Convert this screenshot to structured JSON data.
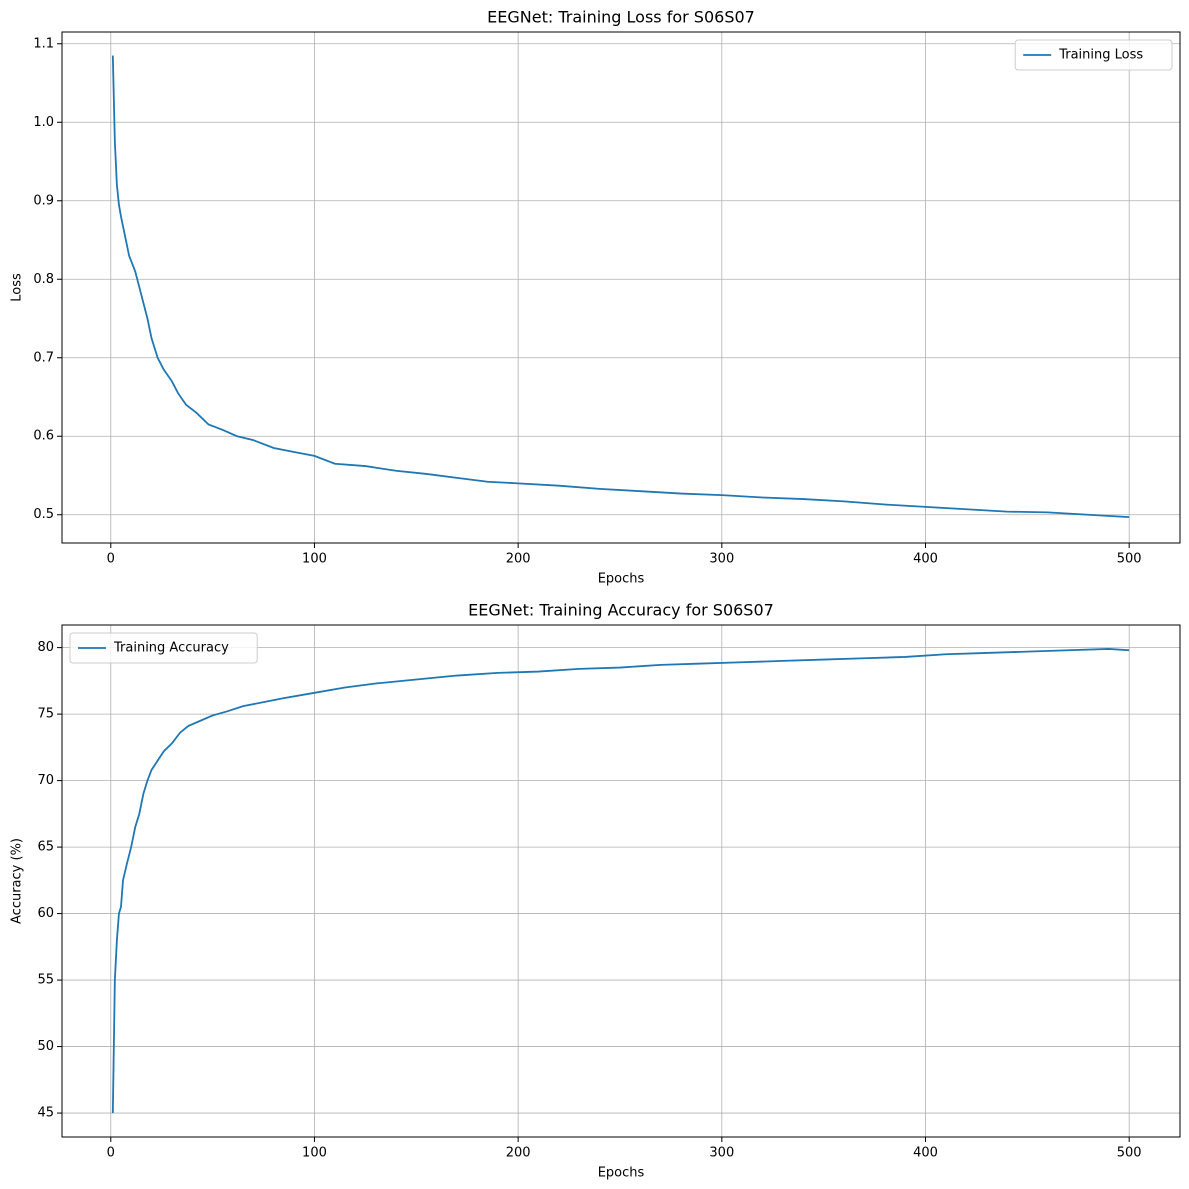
{
  "chart_data": [
    {
      "type": "line",
      "title": "EEGNet: Training Loss for S06S07",
      "xlabel": "Epochs",
      "ylabel": "Loss",
      "x": [
        1,
        2,
        3,
        4,
        5,
        7,
        9,
        12,
        15,
        18,
        20,
        23,
        26,
        30,
        33,
        37,
        42,
        48,
        55,
        62,
        70,
        80,
        90,
        100,
        110,
        125,
        140,
        155,
        170,
        185,
        200,
        220,
        240,
        260,
        280,
        300,
        320,
        340,
        360,
        380,
        400,
        420,
        440,
        460,
        480,
        500
      ],
      "series": [
        {
          "name": "Training Loss",
          "color": "#1f77b4",
          "values": [
            1.085,
            0.975,
            0.92,
            0.895,
            0.88,
            0.855,
            0.83,
            0.81,
            0.78,
            0.75,
            0.725,
            0.7,
            0.685,
            0.67,
            0.655,
            0.64,
            0.63,
            0.615,
            0.608,
            0.6,
            0.595,
            0.585,
            0.58,
            0.575,
            0.565,
            0.562,
            0.556,
            0.552,
            0.547,
            0.542,
            0.54,
            0.537,
            0.533,
            0.53,
            0.527,
            0.525,
            0.522,
            0.52,
            0.517,
            0.513,
            0.51,
            0.507,
            0.504,
            0.503,
            0.5,
            0.497
          ]
        }
      ],
      "xlim": [
        -23.95,
        524.95
      ],
      "xticks": [
        0,
        100,
        200,
        300,
        400,
        500
      ],
      "ylim": [
        0.464,
        1.115
      ],
      "yticks": [
        0.5,
        0.6,
        0.7,
        0.8,
        0.9,
        {
          "value": 1,
          "label": "1.0"
        },
        1.1
      ],
      "grid": true,
      "legend": "upper right"
    },
    {
      "type": "line",
      "title": "EEGNet: Training Accuracy for S06S07",
      "xlabel": "Epochs",
      "ylabel": "Accuracy (%)",
      "x": [
        1,
        2,
        3,
        4,
        5,
        6,
        8,
        10,
        12,
        14,
        16,
        18,
        20,
        23,
        26,
        30,
        34,
        38,
        44,
        50,
        57,
        65,
        75,
        85,
        100,
        115,
        130,
        150,
        170,
        190,
        210,
        230,
        250,
        270,
        290,
        310,
        330,
        350,
        370,
        390,
        410,
        430,
        450,
        470,
        490,
        500
      ],
      "series": [
        {
          "name": "Training Accuracy",
          "color": "#1f77b4",
          "values": [
            45,
            55,
            58,
            60,
            60.5,
            62.5,
            63.8,
            65,
            66.5,
            67.5,
            69,
            70,
            70.8,
            71.5,
            72.2,
            72.8,
            73.6,
            74.1,
            74.5,
            74.9,
            75.2,
            75.6,
            75.9,
            76.2,
            76.6,
            77,
            77.3,
            77.6,
            77.9,
            78.1,
            78.2,
            78.4,
            78.5,
            78.7,
            78.8,
            78.9,
            79,
            79.1,
            79.2,
            79.3,
            79.5,
            79.6,
            79.7,
            79.8,
            79.9,
            79.8
          ]
        }
      ],
      "xlim": [
        -23.95,
        524.95
      ],
      "xticks": [
        0,
        100,
        200,
        300,
        400,
        500
      ],
      "ylim": [
        43.2,
        81.7
      ],
      "yticks": [
        45,
        50,
        55,
        60,
        65,
        70,
        75,
        80
      ],
      "grid": true,
      "legend": "upper left"
    }
  ]
}
